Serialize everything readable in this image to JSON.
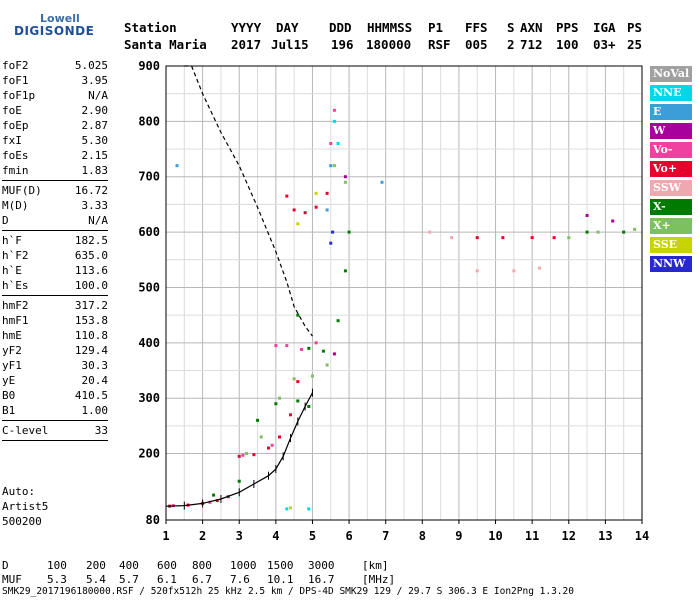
{
  "logo": {
    "line1": "Lowell",
    "line2": "DIGISONDE"
  },
  "header": {
    "labels": [
      "Station",
      "YYYY",
      "DAY",
      "DDD",
      "HHMMSS",
      "P1",
      "FFS",
      "S",
      "AXN",
      "PPS",
      "IGA",
      "PS"
    ],
    "values": [
      "Santa Maria",
      "2017",
      "Jul15",
      "196",
      "180000",
      "RSF",
      "005",
      "2",
      "712",
      "100",
      "03+",
      "25"
    ]
  },
  "params": [
    {
      "name": "foF2",
      "value": "5.025"
    },
    {
      "name": "foF1",
      "value": "3.95"
    },
    {
      "name": "foF1p",
      "value": "N/A"
    },
    {
      "name": "foE",
      "value": "2.90"
    },
    {
      "name": "foEp",
      "value": "2.87"
    },
    {
      "name": "fxI",
      "value": "5.30"
    },
    {
      "name": "foEs",
      "value": "2.15"
    },
    {
      "name": "fmin",
      "value": "1.83"
    },
    {
      "sep": true
    },
    {
      "name": "MUF(D)",
      "value": "16.72"
    },
    {
      "name": "M(D)",
      "value": "3.33"
    },
    {
      "name": "D",
      "value": "N/A"
    },
    {
      "sep": true
    },
    {
      "name": "h`F",
      "value": "182.5"
    },
    {
      "name": "h`F2",
      "value": "635.0"
    },
    {
      "name": "h`E",
      "value": "113.6"
    },
    {
      "name": "h`Es",
      "value": "100.0"
    },
    {
      "sep": true
    },
    {
      "name": "hmF2",
      "value": "317.2"
    },
    {
      "name": "hmF1",
      "value": "153.8"
    },
    {
      "name": "hmE",
      "value": "110.8"
    },
    {
      "name": "yF2",
      "value": "129.4"
    },
    {
      "name": "yF1",
      "value": "30.3"
    },
    {
      "name": "yE",
      "value": "20.4"
    },
    {
      "name": "B0",
      "value": "410.5"
    },
    {
      "name": "B1",
      "value": "1.00"
    },
    {
      "sep": true
    },
    {
      "name": "C-level",
      "value": "33"
    },
    {
      "sep": true
    }
  ],
  "auto": [
    "Auto:",
    "Artist5",
    "500200"
  ],
  "legend": [
    {
      "label": "NoVal",
      "color": "#a0a0a0"
    },
    {
      "label": "NNE",
      "color": "#00d8e8"
    },
    {
      "label": "E",
      "color": "#3c9ed8"
    },
    {
      "label": "W",
      "color": "#a8009c"
    },
    {
      "label": "Vo-",
      "color": "#f040a0"
    },
    {
      "label": "Vo+",
      "color": "#e8002c"
    },
    {
      "label": "SSW",
      "color": "#f0a8b0"
    },
    {
      "label": "X-",
      "color": "#007a00"
    },
    {
      "label": "X+",
      "color": "#7cc060"
    },
    {
      "label": "SSE",
      "color": "#c8d400"
    },
    {
      "label": "NNW",
      "color": "#2828d0"
    }
  ],
  "footer": {
    "d_label": "D",
    "d_values": [
      "100",
      "200",
      "400",
      "600",
      "800",
      "1000",
      "1500",
      "3000"
    ],
    "d_unit": "[km]",
    "muf_label": "MUF",
    "muf_values": [
      "5.3",
      "5.4",
      "5.7",
      "6.1",
      "6.7",
      "7.6",
      "10.1",
      "16.7"
    ],
    "muf_unit": "[MHz]",
    "info": "SMK29_2017196180000.RSF / 520fx512h 25 kHz 2.5 km / DPS-4D SMK29 129 / 29.7 S 306.3 E Ion2Png 1.3.20"
  },
  "chart_data": {
    "type": "scatter",
    "xlim": [
      1,
      14
    ],
    "ylim": [
      80,
      900
    ],
    "x_ticks": [
      1,
      2,
      3,
      4,
      5,
      6,
      7,
      8,
      9,
      10,
      11,
      12,
      13,
      14
    ],
    "y_ticks": [
      80,
      200,
      300,
      400,
      500,
      600,
      700,
      800,
      900
    ],
    "grid": true,
    "legend_position": "right",
    "traces": [
      {
        "name": "Vo+",
        "color": "#e8002c",
        "points": [
          [
            1.1,
            105
          ],
          [
            1.6,
            107
          ],
          [
            2.0,
            110
          ],
          [
            2.4,
            115
          ],
          [
            2.7,
            122
          ],
          [
            3.0,
            195
          ],
          [
            3.4,
            198
          ],
          [
            3.8,
            210
          ],
          [
            4.1,
            230
          ],
          [
            4.4,
            270
          ],
          [
            4.6,
            330
          ],
          [
            4.5,
            640
          ],
          [
            4.8,
            635
          ],
          [
            5.1,
            645
          ],
          [
            5.4,
            670
          ],
          [
            4.3,
            665
          ],
          [
            9.5,
            590
          ],
          [
            10.2,
            590
          ],
          [
            11.0,
            590
          ],
          [
            11.6,
            590
          ]
        ]
      },
      {
        "name": "Vo-",
        "color": "#f040a0",
        "points": [
          [
            1.2,
            106
          ],
          [
            2.2,
            112
          ],
          [
            3.1,
            197
          ],
          [
            3.9,
            215
          ],
          [
            4.3,
            395
          ],
          [
            4.7,
            388
          ],
          [
            5.1,
            400
          ],
          [
            5.5,
            760
          ],
          [
            5.6,
            820
          ],
          [
            4.0,
            395
          ]
        ]
      },
      {
        "name": "X-",
        "color": "#007a00",
        "points": [
          [
            2.3,
            125
          ],
          [
            3.0,
            150
          ],
          [
            3.5,
            260
          ],
          [
            4.0,
            290
          ],
          [
            4.6,
            295
          ],
          [
            4.9,
            285
          ],
          [
            4.6,
            450
          ],
          [
            4.9,
            390
          ],
          [
            5.3,
            385
          ],
          [
            5.7,
            440
          ],
          [
            5.9,
            530
          ],
          [
            6.0,
            600
          ],
          [
            12.5,
            600
          ],
          [
            13.5,
            600
          ]
        ]
      },
      {
        "name": "X+",
        "color": "#7cc060",
        "points": [
          [
            3.2,
            200
          ],
          [
            3.6,
            230
          ],
          [
            4.1,
            300
          ],
          [
            4.5,
            335
          ],
          [
            5.0,
            340
          ],
          [
            5.4,
            360
          ],
          [
            5.6,
            720
          ],
          [
            5.9,
            690
          ],
          [
            12.0,
            590
          ],
          [
            12.8,
            600
          ],
          [
            13.8,
            605
          ]
        ]
      },
      {
        "name": "E",
        "color": "#3c9ed8",
        "points": [
          [
            1.3,
            720
          ],
          [
            5.4,
            640
          ],
          [
            5.5,
            720
          ],
          [
            6.9,
            690
          ]
        ]
      },
      {
        "name": "NNE",
        "color": "#00d8e8",
        "points": [
          [
            4.3,
            100
          ],
          [
            4.9,
            100
          ],
          [
            5.6,
            800
          ],
          [
            5.7,
            760
          ]
        ]
      },
      {
        "name": "W",
        "color": "#a8009c",
        "points": [
          [
            5.6,
            380
          ],
          [
            5.9,
            700
          ],
          [
            12.5,
            630
          ],
          [
            13.2,
            620
          ]
        ]
      },
      {
        "name": "SSW",
        "color": "#f0a8b0",
        "points": [
          [
            8.2,
            600
          ],
          [
            8.8,
            590
          ],
          [
            9.5,
            530
          ],
          [
            10.5,
            530
          ],
          [
            11.2,
            535
          ]
        ]
      },
      {
        "name": "SSE",
        "color": "#c8d400",
        "points": [
          [
            4.6,
            615
          ],
          [
            4.4,
            102
          ],
          [
            5.1,
            670
          ]
        ]
      },
      {
        "name": "NNW",
        "color": "#2828d0",
        "points": [
          [
            5.5,
            580
          ],
          [
            5.55,
            600
          ]
        ]
      }
    ],
    "profile_virtual": [
      [
        1.7,
        900
      ],
      [
        2.0,
        850
      ],
      [
        2.5,
        780
      ],
      [
        3.0,
        720
      ],
      [
        3.5,
        645
      ],
      [
        4.0,
        565
      ],
      [
        4.3,
        510
      ],
      [
        4.5,
        465
      ],
      [
        4.8,
        430
      ],
      [
        5.0,
        412
      ]
    ],
    "profile_true": [
      [
        1.0,
        105
      ],
      [
        1.5,
        106
      ],
      [
        2.0,
        110
      ],
      [
        2.5,
        118
      ],
      [
        3.0,
        130
      ],
      [
        3.4,
        145
      ],
      [
        3.8,
        160
      ],
      [
        4.0,
        172
      ],
      [
        4.2,
        195
      ],
      [
        4.4,
        228
      ],
      [
        4.6,
        258
      ],
      [
        4.8,
        285
      ],
      [
        5.0,
        310
      ]
    ],
    "profile_flat": [
      [
        1.5,
        900
      ],
      [
        1.7,
        900
      ]
    ]
  }
}
